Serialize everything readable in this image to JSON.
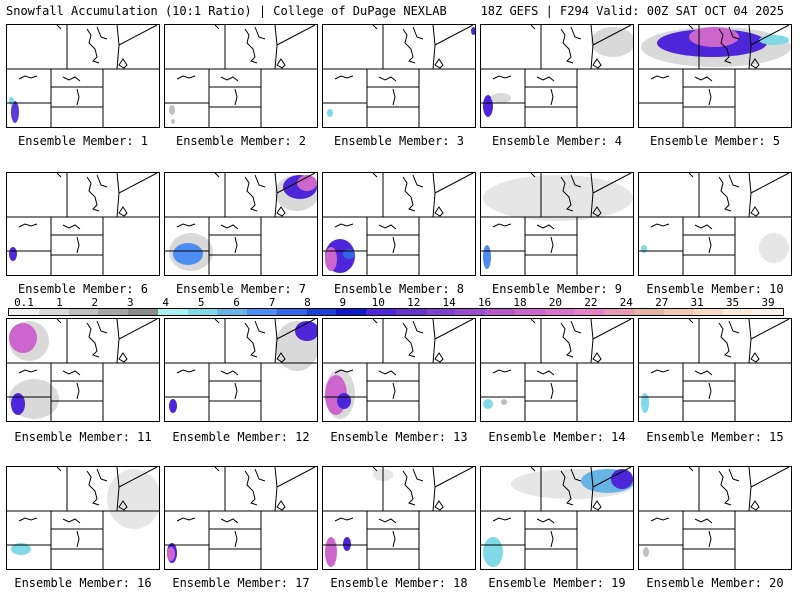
{
  "header": {
    "title_left": "Snowfall Accumulation (10:1 Ratio) | College of DuPage NEXLAB",
    "title_right": "18Z GEFS | F294 Valid: 00Z SAT OCT 04 2025"
  },
  "colorbar": {
    "ticks": [
      "0.1",
      "1",
      "2",
      "3",
      "4",
      "5",
      "6",
      "7",
      "8",
      "9",
      "10",
      "12",
      "14",
      "16",
      "18",
      "20",
      "22",
      "24",
      "27",
      "31",
      "35",
      "39"
    ],
    "colors": [
      "#f2f2f2",
      "#d9d9d9",
      "#bfbfbf",
      "#a6a6a6",
      "#8c8c8c",
      "#a6f2f2",
      "#80d9e6",
      "#66b3e6",
      "#4d8cf2",
      "#3366e6",
      "#1a40d9",
      "#0d1acc",
      "#4d26d9",
      "#6633cc",
      "#8040cc",
      "#994dcc",
      "#b359cc",
      "#cc66cc",
      "#d973cc",
      "#e680cc",
      "#e699b3",
      "#e6b3a6",
      "#f2c7b3",
      "#f7d9c7",
      "#fbe8dc",
      "#fdf2ea"
    ]
  },
  "members": [
    {
      "label": "Ensemble Member: 1",
      "snow": [
        {
          "x": 4,
          "y": 76,
          "w": 8,
          "h": 22,
          "c": "#5a3ad9"
        },
        {
          "x": 2,
          "y": 72,
          "w": 5,
          "h": 8,
          "c": "#80d9e6"
        }
      ]
    },
    {
      "label": "Ensemble Member: 2",
      "snow": [
        {
          "x": 4,
          "y": 80,
          "w": 6,
          "h": 10,
          "c": "#bfbfbf"
        },
        {
          "x": 6,
          "y": 94,
          "w": 4,
          "h": 5,
          "c": "#bfbfbf"
        }
      ]
    },
    {
      "label": "Ensemble Member: 3",
      "snow": [
        {
          "x": 4,
          "y": 84,
          "w": 6,
          "h": 8,
          "c": "#80d9e6"
        },
        {
          "x": 148,
          "y": 2,
          "w": 5,
          "h": 8,
          "c": "#4d26d9"
        }
      ]
    },
    {
      "label": "Ensemble Member: 4",
      "snow": [
        {
          "x": 2,
          "y": 70,
          "w": 10,
          "h": 22,
          "c": "#4d26d9"
        },
        {
          "x": 10,
          "y": 68,
          "w": 20,
          "h": 10,
          "c": "#d9d9d9"
        },
        {
          "x": 110,
          "y": 2,
          "w": 44,
          "h": 30,
          "c": "#d9d9d9"
        }
      ]
    },
    {
      "label": "Ensemble Member: 5",
      "snow": [
        {
          "x": 2,
          "y": 2,
          "w": 150,
          "h": 40,
          "c": "#d9d9d9"
        },
        {
          "x": 18,
          "y": 4,
          "w": 110,
          "h": 28,
          "c": "#4d26d9"
        },
        {
          "x": 50,
          "y": 2,
          "w": 50,
          "h": 20,
          "c": "#cc66cc"
        },
        {
          "x": 120,
          "y": 10,
          "w": 30,
          "h": 10,
          "c": "#80d9e6"
        }
      ]
    },
    {
      "label": "Ensemble Member: 6",
      "snow": [
        {
          "x": 2,
          "y": 74,
          "w": 8,
          "h": 14,
          "c": "#4d26d9"
        }
      ]
    },
    {
      "label": "Ensemble Member: 7",
      "snow": [
        {
          "x": 110,
          "y": 2,
          "w": 44,
          "h": 36,
          "c": "#d9d9d9"
        },
        {
          "x": 118,
          "y": 2,
          "w": 34,
          "h": 24,
          "c": "#4d26d9"
        },
        {
          "x": 132,
          "y": 2,
          "w": 20,
          "h": 16,
          "c": "#cc66cc"
        },
        {
          "x": 4,
          "y": 60,
          "w": 44,
          "h": 38,
          "c": "#d9d9d9"
        },
        {
          "x": 8,
          "y": 70,
          "w": 30,
          "h": 22,
          "c": "#4d8cf2"
        }
      ]
    },
    {
      "label": "Ensemble Member: 8",
      "snow": [
        {
          "x": 2,
          "y": 66,
          "w": 30,
          "h": 34,
          "c": "#4d26d9"
        },
        {
          "x": 2,
          "y": 74,
          "w": 12,
          "h": 24,
          "c": "#cc66cc"
        },
        {
          "x": 20,
          "y": 76,
          "w": 12,
          "h": 10,
          "c": "#3366e6"
        }
      ]
    },
    {
      "label": "Ensemble Member: 9",
      "snow": [
        {
          "x": 2,
          "y": 2,
          "w": 150,
          "h": 46,
          "c": "#e6e6e6"
        },
        {
          "x": 2,
          "y": 72,
          "w": 8,
          "h": 24,
          "c": "#4d8cf2"
        }
      ]
    },
    {
      "label": "Ensemble Member: 10",
      "snow": [
        {
          "x": 2,
          "y": 72,
          "w": 6,
          "h": 8,
          "c": "#80d9e6"
        },
        {
          "x": 120,
          "y": 60,
          "w": 30,
          "h": 30,
          "c": "#e6e6e6"
        }
      ]
    },
    {
      "label": "Ensemble Member: 11",
      "snow": [
        {
          "x": 2,
          "y": 2,
          "w": 40,
          "h": 40,
          "c": "#d9d9d9"
        },
        {
          "x": 2,
          "y": 4,
          "w": 28,
          "h": 30,
          "c": "#cc66cc"
        },
        {
          "x": 2,
          "y": 60,
          "w": 50,
          "h": 40,
          "c": "#d9d9d9"
        },
        {
          "x": 4,
          "y": 74,
          "w": 14,
          "h": 22,
          "c": "#4d26d9"
        }
      ]
    },
    {
      "label": "Ensemble Member: 12",
      "snow": [
        {
          "x": 110,
          "y": 2,
          "w": 44,
          "h": 50,
          "c": "#d9d9d9"
        },
        {
          "x": 130,
          "y": 2,
          "w": 24,
          "h": 20,
          "c": "#4d26d9"
        },
        {
          "x": 4,
          "y": 80,
          "w": 8,
          "h": 14,
          "c": "#4d26d9"
        }
      ]
    },
    {
      "label": "Ensemble Member: 13",
      "snow": [
        {
          "x": 2,
          "y": 50,
          "w": 30,
          "h": 50,
          "c": "#d9d9d9"
        },
        {
          "x": 2,
          "y": 56,
          "w": 22,
          "h": 40,
          "c": "#cc66cc"
        },
        {
          "x": 14,
          "y": 74,
          "w": 14,
          "h": 16,
          "c": "#4d26d9"
        }
      ]
    },
    {
      "label": "Ensemble Member: 14",
      "snow": [
        {
          "x": 2,
          "y": 80,
          "w": 10,
          "h": 10,
          "c": "#80d9e6"
        },
        {
          "x": 20,
          "y": 80,
          "w": 6,
          "h": 6,
          "c": "#bfbfbf"
        }
      ]
    },
    {
      "label": "Ensemble Member: 15",
      "snow": [
        {
          "x": 2,
          "y": 74,
          "w": 8,
          "h": 20,
          "c": "#80d9e6"
        }
      ]
    },
    {
      "label": "Ensemble Member: 16",
      "snow": [
        {
          "x": 100,
          "y": 2,
          "w": 54,
          "h": 60,
          "c": "#e6e6e6"
        },
        {
          "x": 4,
          "y": 76,
          "w": 20,
          "h": 12,
          "c": "#80d9e6"
        }
      ]
    },
    {
      "label": "Ensemble Member: 17",
      "snow": [
        {
          "x": 2,
          "y": 76,
          "w": 10,
          "h": 20,
          "c": "#4d26d9"
        },
        {
          "x": 2,
          "y": 80,
          "w": 8,
          "h": 14,
          "c": "#cc66cc"
        }
      ]
    },
    {
      "label": "Ensemble Member: 18",
      "snow": [
        {
          "x": 2,
          "y": 70,
          "w": 12,
          "h": 30,
          "c": "#cc66cc"
        },
        {
          "x": 20,
          "y": 70,
          "w": 8,
          "h": 14,
          "c": "#4d26d9"
        },
        {
          "x": 50,
          "y": 2,
          "w": 20,
          "h": 12,
          "c": "#e6e6e6"
        }
      ]
    },
    {
      "label": "Ensemble Member: 19",
      "snow": [
        {
          "x": 30,
          "y": 2,
          "w": 124,
          "h": 30,
          "c": "#e6e6e6"
        },
        {
          "x": 100,
          "y": 2,
          "w": 54,
          "h": 24,
          "c": "#66b3e6"
        },
        {
          "x": 130,
          "y": 2,
          "w": 22,
          "h": 20,
          "c": "#4d26d9"
        },
        {
          "x": 2,
          "y": 70,
          "w": 20,
          "h": 30,
          "c": "#80d9e6"
        }
      ]
    },
    {
      "label": "Ensemble Member: 20",
      "snow": [
        {
          "x": 4,
          "y": 80,
          "w": 6,
          "h": 10,
          "c": "#bfbfbf"
        }
      ]
    }
  ]
}
